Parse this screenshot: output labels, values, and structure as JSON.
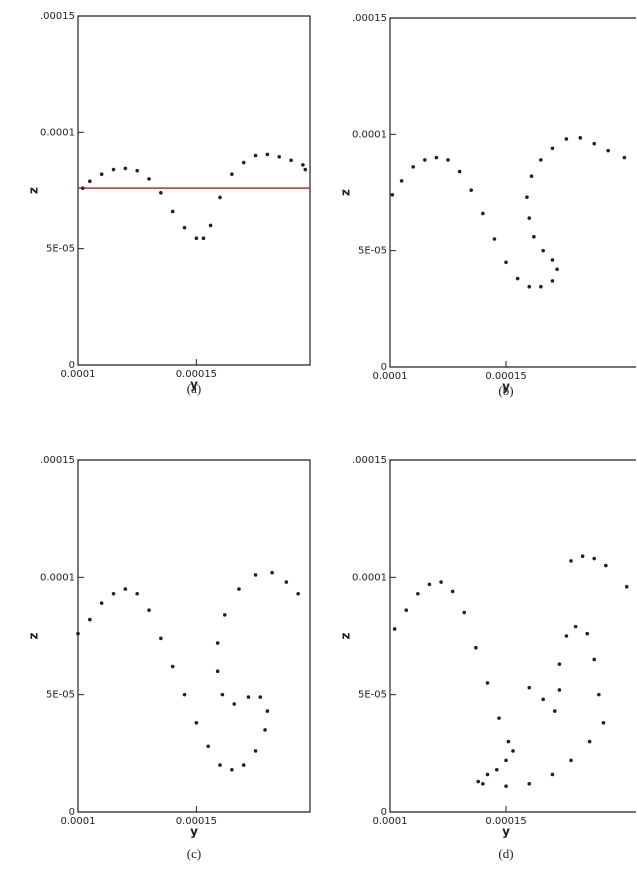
{
  "chart_data": [
    {
      "type": "scatter",
      "caption": "(a)",
      "xlabel": "y",
      "ylabel": "z",
      "color": "#222222",
      "xlim": [
        0.0001,
        0.000198
      ],
      "xticks": [
        0.0001,
        0.00015
      ],
      "ylim": [
        0,
        0.00015
      ],
      "yticks": [
        0,
        {
          "value": 5e-05,
          "label": "5E-05"
        },
        0.0001,
        {
          "value": 0.00015,
          "label": ".00015"
        }
      ],
      "reference_line": {
        "value": 7.6e-05,
        "color": "#cc2a2a"
      },
      "x": [
        0.000102,
        0.000105,
        0.00011,
        0.000115,
        0.00012,
        0.000125,
        0.00013,
        0.000135,
        0.00014,
        0.000145,
        0.00015,
        0.000153,
        0.000156,
        0.00016,
        0.000165,
        0.00017,
        0.000175,
        0.00018,
        0.000185,
        0.00019,
        0.000195,
        0.000196
      ],
      "y": [
        7.6e-05,
        7.9e-05,
        8.2e-05,
        8.4e-05,
        8.45e-05,
        8.35e-05,
        8e-05,
        7.4e-05,
        6.6e-05,
        5.9e-05,
        5.45e-05,
        5.45e-05,
        6e-05,
        7.2e-05,
        8.2e-05,
        8.7e-05,
        9e-05,
        9.05e-05,
        8.95e-05,
        8.8e-05,
        8.6e-05,
        8.4e-05
      ]
    },
    {
      "type": "scatter",
      "caption": "(b)",
      "xlabel": "y",
      "ylabel": "z",
      "color": "#222222",
      "xlim": [
        0.0001,
        0.000206
      ],
      "xticks": [
        0.0001,
        0.00015
      ],
      "ylim": [
        0,
        0.00015
      ],
      "yticks": [
        0,
        {
          "value": 5e-05,
          "label": "5E-05"
        },
        0.0001,
        {
          "value": 0.00015,
          "label": ".00015"
        }
      ],
      "x": [
        0.000101,
        0.000105,
        0.00011,
        0.000115,
        0.00012,
        0.000125,
        0.00013,
        0.000135,
        0.00014,
        0.000145,
        0.00015,
        0.000155,
        0.00016,
        0.000165,
        0.00017,
        0.000172,
        0.00017,
        0.000166,
        0.000162,
        0.00016,
        0.000159,
        0.000161,
        0.000165,
        0.00017,
        0.000176,
        0.000182,
        0.000188,
        0.000194,
        0.000201
      ],
      "y": [
        7.4e-05,
        8e-05,
        8.6e-05,
        8.9e-05,
        9e-05,
        8.9e-05,
        8.4e-05,
        7.6e-05,
        6.6e-05,
        5.5e-05,
        4.5e-05,
        3.8e-05,
        3.45e-05,
        3.45e-05,
        3.7e-05,
        4.2e-05,
        4.6e-05,
        5e-05,
        5.6e-05,
        6.4e-05,
        7.3e-05,
        8.2e-05,
        8.9e-05,
        9.4e-05,
        9.8e-05,
        9.85e-05,
        9.6e-05,
        9.3e-05,
        9e-05
      ]
    },
    {
      "type": "scatter",
      "caption": "(c)",
      "xlabel": "y",
      "ylabel": "z",
      "color": "#222222",
      "xlim": [
        0.0001,
        0.000198
      ],
      "xticks": [
        0.0001,
        0.00015
      ],
      "ylim": [
        0,
        0.00015
      ],
      "yticks": [
        0,
        {
          "value": 5e-05,
          "label": "5E-05"
        },
        0.0001,
        {
          "value": 0.00015,
          "label": ".00015"
        }
      ],
      "x": [
        0.0001,
        0.000105,
        0.00011,
        0.000115,
        0.00012,
        0.000125,
        0.00013,
        0.000135,
        0.00014,
        0.000145,
        0.00015,
        0.000155,
        0.00016,
        0.000165,
        0.00017,
        0.000175,
        0.000179,
        0.00018,
        0.000177,
        0.000172,
        0.000166,
        0.000161,
        0.000159,
        0.000159,
        0.000162,
        0.000168,
        0.000175,
        0.000182,
        0.000188,
        0.000193
      ],
      "y": [
        7.6e-05,
        8.2e-05,
        8.9e-05,
        9.3e-05,
        9.5e-05,
        9.3e-05,
        8.6e-05,
        7.4e-05,
        6.2e-05,
        5e-05,
        3.8e-05,
        2.8e-05,
        2e-05,
        1.8e-05,
        2e-05,
        2.6e-05,
        3.5e-05,
        4.3e-05,
        4.9e-05,
        4.9e-05,
        4.6e-05,
        5e-05,
        6e-05,
        7.2e-05,
        8.4e-05,
        9.5e-05,
        0.000101,
        0.000102,
        9.8e-05,
        9.3e-05
      ]
    },
    {
      "type": "scatter",
      "caption": "(d)",
      "xlabel": "y",
      "ylabel": "z",
      "color": "#222222",
      "xlim": [
        0.0001,
        0.000206
      ],
      "xticks": [
        0.0001,
        0.00015
      ],
      "ylim": [
        0,
        0.00015
      ],
      "yticks": [
        0,
        {
          "value": 5e-05,
          "label": "5E-05"
        },
        0.0001,
        {
          "value": 0.00015,
          "label": ".00015"
        }
      ],
      "x": [
        0.000102,
        0.000107,
        0.000112,
        0.000117,
        0.000122,
        0.000127,
        0.000132,
        0.000137,
        0.000142,
        0.000147,
        0.000151,
        0.000153,
        0.00015,
        0.000146,
        0.000142,
        0.000138,
        0.00014,
        0.00015,
        0.00016,
        0.00017,
        0.000178,
        0.000186,
        0.000192,
        0.00016,
        0.000166,
        0.000171,
        0.000173,
        0.000173,
        0.000176,
        0.00018,
        0.000185,
        0.000188,
        0.00019,
        0.000178,
        0.000183,
        0.000188,
        0.000193,
        0.000202
      ],
      "y": [
        7.8e-05,
        8.6e-05,
        9.3e-05,
        9.7e-05,
        9.8e-05,
        9.4e-05,
        8.5e-05,
        7e-05,
        5.5e-05,
        4e-05,
        3e-05,
        2.6e-05,
        2.2e-05,
        1.8e-05,
        1.6e-05,
        1.3e-05,
        1.2e-05,
        1.1e-05,
        1.2e-05,
        1.6e-05,
        2.2e-05,
        3e-05,
        3.8e-05,
        5.3e-05,
        4.8e-05,
        4.3e-05,
        5.2e-05,
        6.3e-05,
        7.5e-05,
        7.9e-05,
        7.6e-05,
        6.5e-05,
        5e-05,
        0.000107,
        0.000109,
        0.000108,
        0.000105,
        9.6e-05
      ]
    }
  ]
}
